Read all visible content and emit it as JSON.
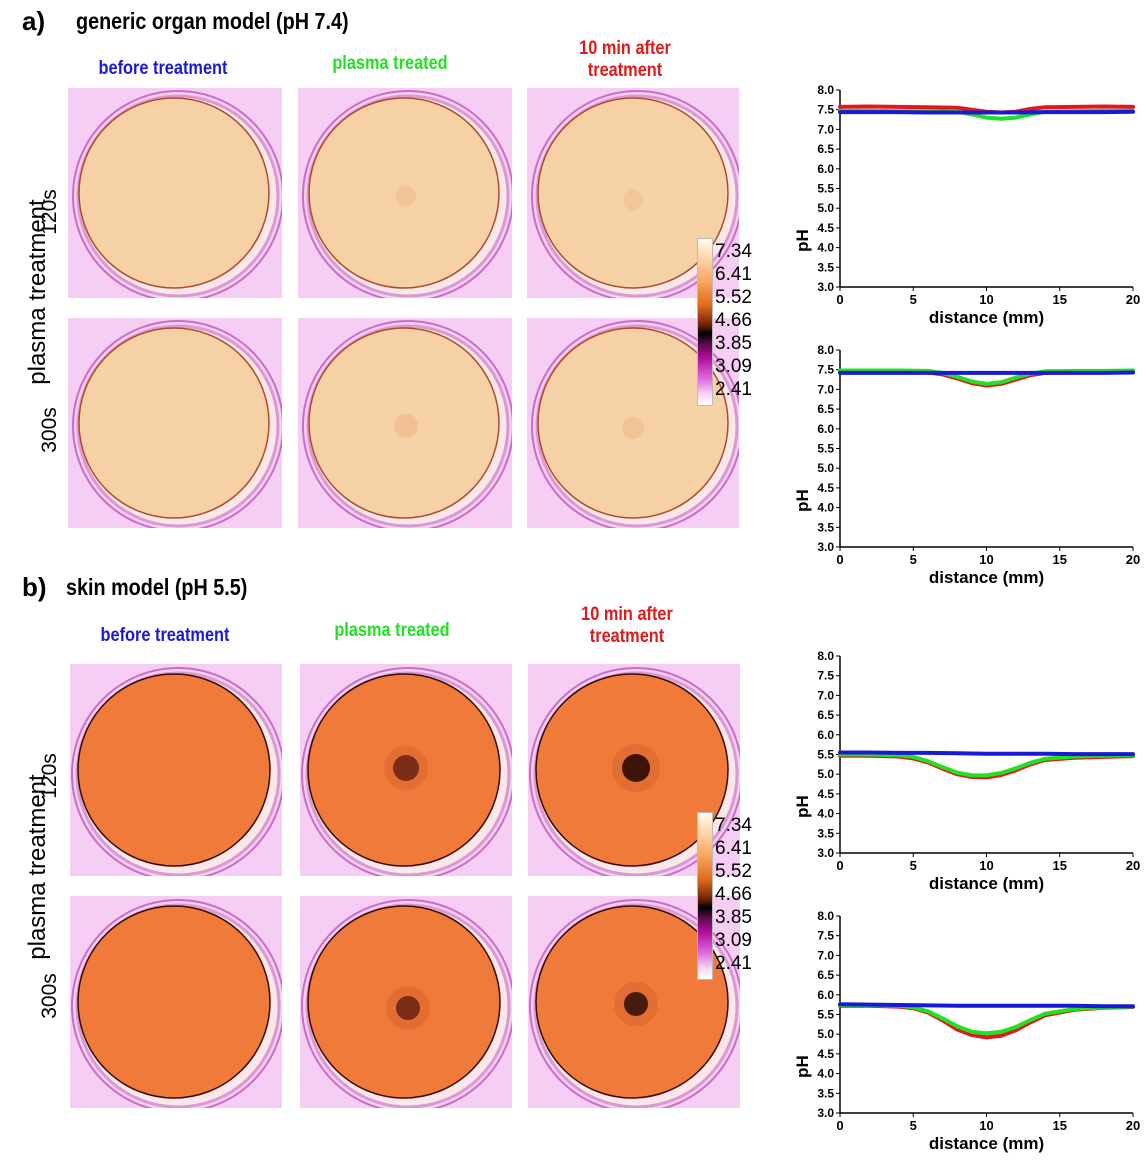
{
  "panels": [
    {
      "letter": "a)",
      "title": "generic organ model (pH 7.4)",
      "columns": [
        {
          "label_line1": "before treatment",
          "label_line2": "",
          "color": "#1a1ad6"
        },
        {
          "label_line1": "plasma treated",
          "label_line2": "",
          "color": "#22e022"
        },
        {
          "label_line1": "10 min after",
          "label_line2": "treatment",
          "color": "#e01a1a"
        }
      ],
      "side_label": "plasma treatment",
      "rows": [
        "120s",
        "300s"
      ],
      "colorbar": [
        "7.34",
        "6.41",
        "5.52",
        "4.66",
        "3.85",
        "3.09",
        "2.41"
      ]
    },
    {
      "letter": "b)",
      "title": "skin model (pH 5.5)",
      "columns": [
        {
          "label_line1": "before treatment",
          "label_line2": "",
          "color": "#1a1ad6"
        },
        {
          "label_line1": "plasma treated",
          "label_line2": "",
          "color": "#22e022"
        },
        {
          "label_line1": "10 min after",
          "label_line2": "treatment",
          "color": "#e01a1a"
        }
      ],
      "side_label": "plasma treatment",
      "rows": [
        "120s",
        "300s"
      ],
      "colorbar": [
        "7.34",
        "6.41",
        "5.52",
        "4.66",
        "3.85",
        "3.09",
        "2.41"
      ]
    }
  ],
  "chart_data": [
    {
      "type": "line",
      "xlabel": "distance (mm)",
      "ylabel": "pH",
      "xlim": [
        0,
        20
      ],
      "ylim": [
        3.0,
        8.0
      ],
      "xticks": [
        "0",
        "5",
        "10",
        "15",
        "20"
      ],
      "yticks": [
        "3.0",
        "3.5",
        "4.0",
        "4.5",
        "5.0",
        "5.5",
        "6.0",
        "6.5",
        "7.0",
        "7.5",
        "8.0"
      ],
      "series": [
        {
          "color": "#e01a1a",
          "x": [
            0,
            2,
            4,
            6,
            8,
            9,
            10,
            11,
            12,
            13,
            14,
            16,
            18,
            20
          ],
          "y": [
            7.57,
            7.58,
            7.57,
            7.56,
            7.55,
            7.5,
            7.45,
            7.43,
            7.45,
            7.52,
            7.56,
            7.57,
            7.58,
            7.57
          ]
        },
        {
          "color": "#22e022",
          "x": [
            0,
            2,
            4,
            6,
            8,
            9,
            10,
            11,
            12,
            13,
            14,
            16,
            18,
            20
          ],
          "y": [
            7.47,
            7.47,
            7.46,
            7.46,
            7.45,
            7.38,
            7.3,
            7.27,
            7.3,
            7.38,
            7.45,
            7.46,
            7.47,
            7.47
          ]
        },
        {
          "color": "#1a1ad6",
          "x": [
            0,
            2,
            4,
            6,
            8,
            10,
            12,
            14,
            16,
            18,
            20
          ],
          "y": [
            7.44,
            7.44,
            7.44,
            7.43,
            7.43,
            7.43,
            7.43,
            7.44,
            7.44,
            7.44,
            7.45
          ]
        }
      ]
    },
    {
      "type": "line",
      "xlabel": "distance (mm)",
      "ylabel": "pH",
      "xlim": [
        0,
        20
      ],
      "ylim": [
        3.0,
        8.0
      ],
      "xticks": [
        "0",
        "5",
        "10",
        "15",
        "20"
      ],
      "yticks": [
        "3.0",
        "3.5",
        "4.0",
        "4.5",
        "5.0",
        "5.5",
        "6.0",
        "6.5",
        "7.0",
        "7.5",
        "8.0"
      ],
      "series": [
        {
          "color": "#e01a1a",
          "x": [
            0,
            2,
            4,
            6,
            7,
            8,
            9,
            10,
            11,
            12,
            13,
            14,
            16,
            18,
            20
          ],
          "y": [
            7.44,
            7.44,
            7.44,
            7.43,
            7.38,
            7.28,
            7.16,
            7.1,
            7.14,
            7.25,
            7.36,
            7.42,
            7.43,
            7.44,
            7.44
          ]
        },
        {
          "color": "#22e022",
          "x": [
            0,
            2,
            4,
            6,
            7,
            8,
            9,
            10,
            11,
            12,
            13,
            14,
            16,
            18,
            20
          ],
          "y": [
            7.48,
            7.48,
            7.48,
            7.47,
            7.42,
            7.32,
            7.2,
            7.14,
            7.18,
            7.3,
            7.4,
            7.46,
            7.47,
            7.47,
            7.48
          ]
        },
        {
          "color": "#1a1ad6",
          "x": [
            0,
            2,
            4,
            6,
            8,
            10,
            12,
            14,
            16,
            18,
            20
          ],
          "y": [
            7.42,
            7.42,
            7.42,
            7.42,
            7.42,
            7.42,
            7.42,
            7.42,
            7.42,
            7.42,
            7.43
          ]
        }
      ]
    },
    {
      "type": "line",
      "xlabel": "distance (mm)",
      "ylabel": "pH",
      "xlim": [
        0,
        20
      ],
      "ylim": [
        3.0,
        8.0
      ],
      "xticks": [
        "0",
        "5",
        "10",
        "15",
        "20"
      ],
      "yticks": [
        "3.0",
        "3.5",
        "4.0",
        "4.5",
        "5.0",
        "5.5",
        "6.0",
        "6.5",
        "7.0",
        "7.5",
        "8.0"
      ],
      "series": [
        {
          "color": "#e01a1a",
          "x": [
            0,
            2,
            4,
            5,
            6,
            7,
            8,
            9,
            10,
            11,
            12,
            13,
            14,
            16,
            18,
            20
          ],
          "y": [
            5.47,
            5.47,
            5.45,
            5.4,
            5.3,
            5.14,
            5.0,
            4.93,
            4.92,
            4.98,
            5.1,
            5.25,
            5.36,
            5.42,
            5.44,
            5.46
          ]
        },
        {
          "color": "#22e022",
          "x": [
            0,
            2,
            4,
            5,
            6,
            7,
            8,
            9,
            10,
            11,
            12,
            13,
            14,
            16,
            18,
            20
          ],
          "y": [
            5.5,
            5.5,
            5.48,
            5.44,
            5.33,
            5.18,
            5.04,
            4.97,
            4.97,
            5.03,
            5.15,
            5.29,
            5.39,
            5.45,
            5.47,
            5.48
          ]
        },
        {
          "color": "#1a1ad6",
          "x": [
            0,
            2,
            4,
            6,
            8,
            10,
            12,
            14,
            16,
            18,
            20
          ],
          "y": [
            5.55,
            5.55,
            5.54,
            5.54,
            5.53,
            5.52,
            5.52,
            5.52,
            5.51,
            5.51,
            5.51
          ]
        }
      ]
    },
    {
      "type": "line",
      "xlabel": "distance (mm)",
      "ylabel": "pH",
      "xlim": [
        0,
        20
      ],
      "ylim": [
        3.0,
        8.0
      ],
      "xticks": [
        "0",
        "5",
        "10",
        "15",
        "20"
      ],
      "yticks": [
        "3.0",
        "3.5",
        "4.0",
        "4.5",
        "5.0",
        "5.5",
        "6.0",
        "6.5",
        "7.0",
        "7.5",
        "8.0"
      ],
      "series": [
        {
          "color": "#e01a1a",
          "x": [
            0,
            2,
            4,
            5,
            6,
            7,
            8,
            9,
            10,
            11,
            12,
            13,
            14,
            16,
            18,
            20
          ],
          "y": [
            5.72,
            5.72,
            5.7,
            5.66,
            5.55,
            5.35,
            5.12,
            4.98,
            4.92,
            4.96,
            5.1,
            5.3,
            5.48,
            5.62,
            5.67,
            5.69
          ]
        },
        {
          "color": "#22e022",
          "x": [
            0,
            2,
            4,
            5,
            6,
            7,
            8,
            9,
            10,
            11,
            12,
            13,
            14,
            16,
            18,
            20
          ],
          "y": [
            5.74,
            5.74,
            5.72,
            5.68,
            5.58,
            5.4,
            5.2,
            5.06,
            5.02,
            5.06,
            5.18,
            5.36,
            5.52,
            5.64,
            5.68,
            5.7
          ]
        },
        {
          "color": "#1a1ad6",
          "x": [
            0,
            2,
            4,
            6,
            8,
            10,
            12,
            14,
            16,
            18,
            20
          ],
          "y": [
            5.76,
            5.75,
            5.74,
            5.73,
            5.72,
            5.72,
            5.72,
            5.72,
            5.72,
            5.71,
            5.71
          ]
        }
      ]
    }
  ]
}
